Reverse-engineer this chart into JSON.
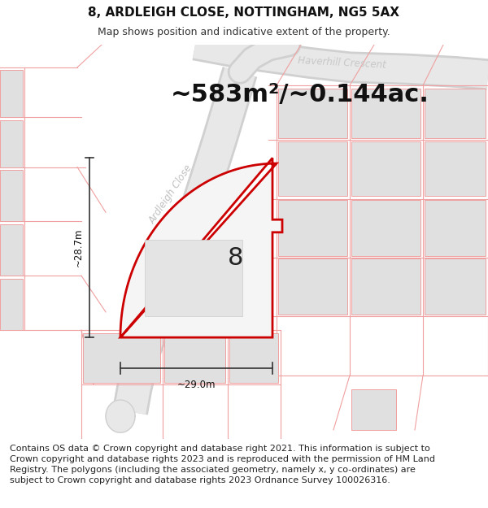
{
  "title_line1": "8, ARDLEIGH CLOSE, NOTTINGHAM, NG5 5AX",
  "title_line2": "Map shows position and indicative extent of the property.",
  "area_text": "~583m²/~0.144ac.",
  "number_label": "8",
  "width_label": "~29.0m",
  "height_label": "~28.7m",
  "road_label": "Ardleigh Close",
  "crescent_label": "Haverhill Crescent",
  "footer_text": "Contains OS data © Crown copyright and database right 2021. This information is subject to Crown copyright and database rights 2023 and is reproduced with the permission of HM Land Registry. The polygons (including the associated geometry, namely x, y co-ordinates) are subject to Crown copyright and database rights 2023 Ordnance Survey 100026316.",
  "bg_color": "#ffffff",
  "map_bg": "#f5f5f5",
  "plot_fill": "#f0f0f0",
  "building_fill": "#e0e0e0",
  "road_band_color": "#e8e8e8",
  "plot_border_color": "#dd0000",
  "parcel_line_color": "#f0a0a0",
  "title_fontsize": 11,
  "subtitle_fontsize": 9,
  "area_fontsize": 22,
  "footer_fontsize": 8.0,
  "road_text_color": "#c0c0c0",
  "crescent_text_color": "#c8c8c8"
}
